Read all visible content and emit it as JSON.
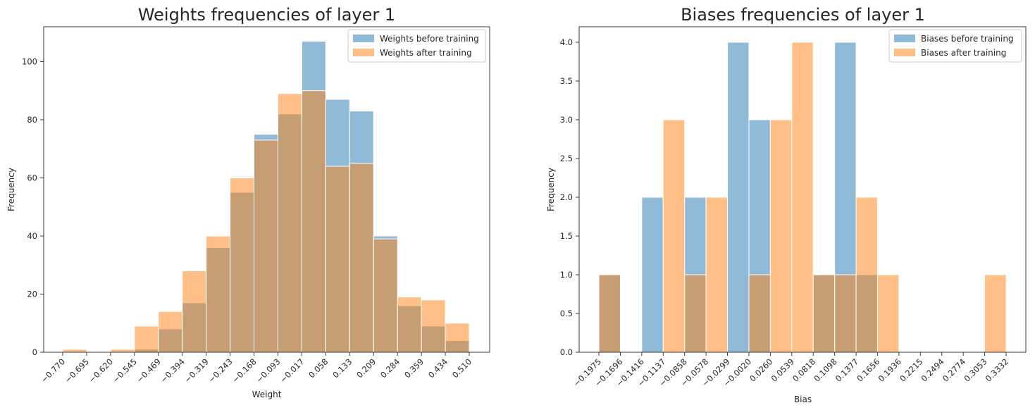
{
  "chart_data": [
    {
      "type": "bar",
      "title": "Weights frequencies of layer 1",
      "xlabel": "Weight",
      "ylabel": "Frequency",
      "ylim": [
        0,
        112
      ],
      "yticks": [
        0,
        20,
        40,
        60,
        80,
        100
      ],
      "grid": false,
      "legend_position": "top-right",
      "bin_edges": [
        "−0.770",
        "−0.695",
        "−0.620",
        "−0.545",
        "−0.469",
        "−0.394",
        "−0.319",
        "−0.243",
        "−0.168",
        "−0.093",
        "−0.017",
        "0.058",
        "0.133",
        "0.209",
        "0.284",
        "0.359",
        "0.434",
        "0.510"
      ],
      "series": [
        {
          "name": "Weights before training",
          "color": "#1f77b4",
          "values": [
            0,
            0,
            0,
            1,
            8,
            17,
            36,
            55,
            75,
            82,
            107,
            87,
            83,
            40,
            16,
            9,
            4
          ]
        },
        {
          "name": "Weights after training",
          "color": "#ff7f0e",
          "values": [
            1,
            0,
            1,
            9,
            14,
            28,
            40,
            60,
            73,
            89,
            90,
            64,
            65,
            39,
            19,
            18,
            10
          ]
        }
      ]
    },
    {
      "type": "bar",
      "title": "Biases frequencies of layer 1",
      "xlabel": "Bias",
      "ylabel": "Frequency",
      "ylim": [
        0,
        4.2
      ],
      "yticks": [
        "0.0",
        "0.5",
        "1.0",
        "1.5",
        "2.0",
        "2.5",
        "3.0",
        "3.5",
        "4.0"
      ],
      "grid": false,
      "legend_position": "top-right",
      "bin_edges": [
        "−0.1975",
        "−0.1696",
        "−0.1416",
        "−0.1137",
        "−0.0858",
        "−0.0578",
        "−0.0299",
        "−0.0020",
        "0.0260",
        "0.0539",
        "0.0818",
        "0.1098",
        "0.1377",
        "0.1656",
        "0.1936",
        "0.2215",
        "0.2494",
        "0.2774",
        "0.3053",
        "0.3332"
      ],
      "series": [
        {
          "name": "Biases before training",
          "color": "#1f77b4",
          "values": [
            1,
            0,
            2,
            0,
            2,
            0,
            4,
            3,
            0,
            0,
            1,
            4,
            1,
            0,
            0,
            0,
            0,
            0,
            0
          ]
        },
        {
          "name": "Biases after training",
          "color": "#ff7f0e",
          "values": [
            1,
            0,
            0,
            3,
            1,
            2,
            0,
            1,
            3,
            4,
            1,
            1,
            2,
            1,
            0,
            0,
            0,
            0,
            1
          ]
        }
      ]
    }
  ]
}
